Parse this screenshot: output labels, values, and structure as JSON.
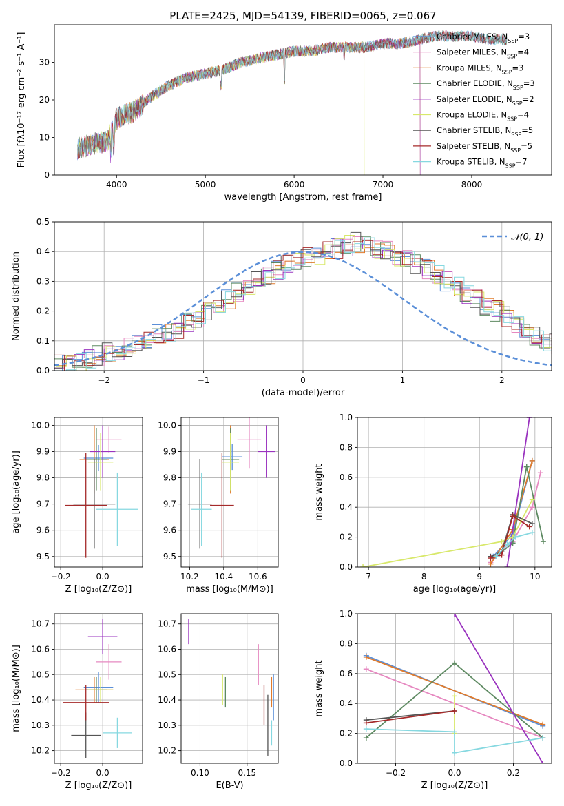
{
  "figure": {
    "title": "PLATE=2425, MJD=54139, FIBERID=0065, z=0.067"
  },
  "colors": {
    "Chabrier MILES": "#5b8fd8",
    "Salpeter MILES": "#e688c0",
    "Kroupa MILES": "#e07b2c",
    "Chabrier ELODIE": "#5e8a62",
    "Salpeter ELODIE": "#9a33bf",
    "Kroupa ELODIE": "#d8e86a",
    "Chabrier STELIB": "#555555",
    "Salpeter STELIB": "#a52a2a",
    "Kroupa STELIB": "#86d8e0"
  },
  "chart_data": [
    {
      "id": "spectrum",
      "type": "line",
      "title": "PLATE=2425, MJD=54139, FIBERID=0065, z=0.067",
      "xlabel": "wavelength [Angstrom, rest frame]",
      "ylabel": "Flux [fλ10⁻¹⁷ erg cm⁻² s⁻¹ A⁻¹]",
      "xlim": [
        3300,
        8900
      ],
      "ylim": [
        0,
        40
      ],
      "xticks": [
        4000,
        5000,
        6000,
        7000,
        8000
      ],
      "yticks": [
        0,
        10,
        20,
        30
      ],
      "legend": "right",
      "series": [
        {
          "name": "Chabrier MILES, N_SSP=3",
          "label_main": "Chabrier MILES, N",
          "label_sub": "SSP",
          "label_tail": "=3"
        },
        {
          "name": "Salpeter MILES, N_SSP=4",
          "label_main": "Salpeter MILES, N",
          "label_sub": "SSP",
          "label_tail": "=4"
        },
        {
          "name": "Kroupa MILES, N_SSP=3",
          "label_main": "Kroupa MILES, N",
          "label_sub": "SSP",
          "label_tail": "=3"
        },
        {
          "name": "Chabrier ELODIE, N_SSP=3",
          "label_main": "Chabrier ELODIE, N",
          "label_sub": "SSP",
          "label_tail": "=3"
        },
        {
          "name": "Salpeter ELODIE, N_SSP=2",
          "label_main": "Salpeter ELODIE, N",
          "label_sub": "SSP",
          "label_tail": "=2"
        },
        {
          "name": "Kroupa ELODIE, N_SSP=4",
          "label_main": "Kroupa ELODIE, N",
          "label_sub": "SSP",
          "label_tail": "=4"
        },
        {
          "name": "Chabrier STELIB, N_SSP=5",
          "label_main": "Chabrier STELIB, N",
          "label_sub": "SSP",
          "label_tail": "=5"
        },
        {
          "name": "Salpeter STELIB, N_SSP=5",
          "label_main": "Salpeter STELIB, N",
          "label_sub": "SSP",
          "label_tail": "=5"
        },
        {
          "name": "Kroupa STELIB, N_SSP=7",
          "label_main": "Kroupa STELIB, N",
          "label_sub": "SSP",
          "label_tail": "=7"
        }
      ],
      "continuum": {
        "x": [
          3560,
          3700,
          3900,
          3950,
          4000,
          4200,
          4400,
          4600,
          4800,
          5000,
          5200,
          5400,
          5600,
          5800,
          6000,
          6200,
          6400,
          6600,
          6800,
          7000,
          7200,
          7400,
          7600,
          7800,
          8000,
          8200,
          8400
        ],
        "y": [
          7,
          8,
          9,
          12,
          15,
          17,
          21,
          24,
          26,
          27,
          28,
          30,
          31,
          32,
          33,
          33,
          34,
          34,
          34,
          35,
          35,
          36,
          37,
          37,
          37,
          36,
          36
        ]
      },
      "spectrum_end": {
        "Salpeter ELODIE": 7420,
        "Kroupa ELODIE": 6790,
        "Kroupa MILES": 7420
      }
    },
    {
      "id": "residuals",
      "type": "histogram",
      "xlabel": "(data-model)/error",
      "ylabel": "Normed distribution",
      "xlim": [
        -2.5,
        2.5
      ],
      "ylim": [
        0,
        0.5
      ],
      "xticks": [
        -2,
        -1,
        0,
        1,
        2
      ],
      "yticks": [
        0.0,
        0.1,
        0.2,
        0.3,
        0.4,
        0.5
      ],
      "legend": "top-right",
      "legend_label": "𝒩(0, 1)",
      "bin_width": 0.1,
      "base_heights": [
        0.02,
        0.02,
        0.03,
        0.04,
        0.05,
        0.06,
        0.07,
        0.08,
        0.09,
        0.1,
        0.12,
        0.13,
        0.14,
        0.16,
        0.18,
        0.2,
        0.22,
        0.24,
        0.26,
        0.28,
        0.3,
        0.32,
        0.34,
        0.36,
        0.37,
        0.38,
        0.39,
        0.4,
        0.41,
        0.42,
        0.43,
        0.42,
        0.41,
        0.4,
        0.38,
        0.37,
        0.36,
        0.34,
        0.32,
        0.3,
        0.28,
        0.26,
        0.24,
        0.22,
        0.2,
        0.18,
        0.16,
        0.14,
        0.12,
        0.1,
        0.09,
        0.08,
        0.07,
        0.06,
        0.05,
        0.04,
        0.03,
        0.03,
        0.02,
        0.02
      ]
    },
    {
      "id": "age_vs_Z",
      "type": "scatter",
      "xlabel": "Z [log₁₀(Z/Z⊙)]",
      "ylabel": "age  [log₁₀(age/yr)]",
      "xlim": [
        -0.23,
        0.19
      ],
      "ylim": [
        9.46,
        10.03
      ],
      "xticks": [
        -0.2,
        0.0
      ],
      "yticks": [
        9.5,
        9.6,
        9.7,
        9.8,
        9.9,
        10.0
      ],
      "points": [
        {
          "model": "Chabrier MILES",
          "x": -0.02,
          "y": 9.875,
          "xerr": 0.07,
          "yerr": 0.05
        },
        {
          "model": "Salpeter MILES",
          "x": 0.03,
          "y": 9.945,
          "xerr": 0.06,
          "yerr": 0.05
        },
        {
          "model": "Kroupa MILES",
          "x": -0.04,
          "y": 9.87,
          "xerr": 0.07,
          "yerr": 0.13
        },
        {
          "model": "Chabrier ELODIE",
          "x": -0.03,
          "y": 9.87,
          "xerr": 0.05,
          "yerr": 0.12
        },
        {
          "model": "Salpeter ELODIE",
          "x": 0.0,
          "y": 9.9,
          "xerr": 0.06,
          "yerr": 0.1
        },
        {
          "model": "Kroupa ELODIE",
          "x": -0.01,
          "y": 9.86,
          "xerr": 0.06,
          "yerr": 0.11
        },
        {
          "model": "Chabrier STELIB",
          "x": -0.04,
          "y": 9.7,
          "xerr": 0.1,
          "yerr": 0.17
        },
        {
          "model": "Salpeter STELIB",
          "x": -0.08,
          "y": 9.695,
          "xerr": 0.1,
          "yerr": 0.2
        },
        {
          "model": "Kroupa STELIB",
          "x": 0.07,
          "y": 9.68,
          "xerr": 0.1,
          "yerr": 0.14
        }
      ]
    },
    {
      "id": "age_vs_mass",
      "type": "scatter",
      "xlabel": "mass [log₁₀(M/M⊙)]",
      "ylabel": "",
      "xlim": [
        10.15,
        10.72
      ],
      "ylim": [
        9.46,
        10.03
      ],
      "xticks": [
        10.2,
        10.4,
        10.6
      ],
      "yticks": [
        9.5,
        9.6,
        9.7,
        9.8,
        9.9,
        10.0
      ],
      "points": [
        {
          "model": "Chabrier MILES",
          "x": 10.45,
          "y": 9.88,
          "xerr": 0.06,
          "yerr": 0.05
        },
        {
          "model": "Salpeter MILES",
          "x": 10.55,
          "y": 9.945,
          "xerr": 0.07,
          "yerr": 0.11
        },
        {
          "model": "Kroupa MILES",
          "x": 10.44,
          "y": 9.87,
          "xerr": 0.05,
          "yerr": 0.13
        },
        {
          "model": "Chabrier ELODIE",
          "x": 10.44,
          "y": 9.87,
          "xerr": 0.05,
          "yerr": 0.12
        },
        {
          "model": "Salpeter ELODIE",
          "x": 10.65,
          "y": 9.9,
          "xerr": 0.05,
          "yerr": 0.1
        },
        {
          "model": "Kroupa ELODIE",
          "x": 10.44,
          "y": 9.86,
          "xerr": 0.05,
          "yerr": 0.11
        },
        {
          "model": "Chabrier STELIB",
          "x": 10.26,
          "y": 9.7,
          "xerr": 0.07,
          "yerr": 0.17
        },
        {
          "model": "Salpeter STELIB",
          "x": 10.39,
          "y": 9.695,
          "xerr": 0.07,
          "yerr": 0.2
        },
        {
          "model": "Kroupa STELIB",
          "x": 10.27,
          "y": 9.68,
          "xerr": 0.06,
          "yerr": 0.14
        }
      ]
    },
    {
      "id": "weight_vs_age",
      "type": "line",
      "xlabel": "age  [log₁₀(age/yr)]",
      "ylabel": "mass weight",
      "xlim": [
        6.8,
        10.3
      ],
      "ylim": [
        0,
        1
      ],
      "xticks": [
        7,
        8,
        9,
        10
      ],
      "yticks": [
        0.0,
        0.2,
        0.4,
        0.6,
        0.8,
        1.0
      ],
      "series": [
        {
          "name": "Chabrier MILES",
          "x": [
            9.25,
            9.6,
            9.95
          ],
          "y": [
            0.07,
            0.22,
            0.71
          ]
        },
        {
          "name": "Salpeter MILES",
          "x": [
            9.2,
            9.6,
            9.95,
            10.1
          ],
          "y": [
            0.03,
            0.17,
            0.4,
            0.63
          ]
        },
        {
          "name": "Kroupa MILES",
          "x": [
            9.2,
            9.6,
            9.95
          ],
          "y": [
            0.02,
            0.25,
            0.71
          ]
        },
        {
          "name": "Chabrier ELODIE",
          "x": [
            9.3,
            9.6,
            9.85,
            10.15
          ],
          "y": [
            0.07,
            0.16,
            0.67,
            0.17
          ]
        },
        {
          "name": "Salpeter ELODIE",
          "x": [
            9.5,
            9.9
          ],
          "y": [
            0.0,
            1.0
          ]
        },
        {
          "name": "Kroupa ELODIE",
          "x": [
            6.9,
            9.4,
            9.6,
            9.95
          ],
          "y": [
            0.0,
            0.17,
            0.2,
            0.45
          ]
        },
        {
          "name": "Chabrier STELIB",
          "x": [
            9.2,
            9.4,
            9.6,
            9.95
          ],
          "y": [
            0.07,
            0.1,
            0.35,
            0.29
          ]
        },
        {
          "name": "Salpeter STELIB",
          "x": [
            9.2,
            9.4,
            9.6,
            9.9
          ],
          "y": [
            0.06,
            0.08,
            0.34,
            0.27
          ]
        },
        {
          "name": "Kroupa STELIB",
          "x": [
            9.3,
            9.5,
            9.65,
            9.95
          ],
          "y": [
            0.07,
            0.15,
            0.2,
            0.23
          ]
        }
      ]
    },
    {
      "id": "mass_vs_Z",
      "type": "scatter",
      "xlabel": "Z [log₁₀(Z/Z⊙)]",
      "ylabel": "mass [log₁₀(M/M⊙)]",
      "xlim": [
        -0.23,
        0.19
      ],
      "ylim": [
        10.15,
        10.74
      ],
      "xticks": [
        -0.2,
        0.0
      ],
      "yticks": [
        10.2,
        10.3,
        10.4,
        10.5,
        10.6,
        10.7
      ],
      "points": [
        {
          "model": "Chabrier MILES",
          "x": -0.02,
          "y": 10.45,
          "xerr": 0.07,
          "yerr": 0.06
        },
        {
          "model": "Salpeter MILES",
          "x": 0.03,
          "y": 10.55,
          "xerr": 0.06,
          "yerr": 0.07
        },
        {
          "model": "Kroupa MILES",
          "x": -0.04,
          "y": 10.44,
          "xerr": 0.09,
          "yerr": 0.05
        },
        {
          "model": "Chabrier ELODIE",
          "x": -0.03,
          "y": 10.44,
          "xerr": 0.05,
          "yerr": 0.05
        },
        {
          "model": "Salpeter ELODIE",
          "x": 0.0,
          "y": 10.65,
          "xerr": 0.07,
          "yerr": 0.07
        },
        {
          "model": "Kroupa ELODIE",
          "x": -0.01,
          "y": 10.44,
          "xerr": 0.06,
          "yerr": 0.05
        },
        {
          "model": "Chabrier STELIB",
          "x": -0.08,
          "y": 10.26,
          "xerr": 0.07,
          "yerr": 0.09
        },
        {
          "model": "Salpeter STELIB",
          "x": -0.08,
          "y": 10.39,
          "xerr": 0.11,
          "yerr": 0.07
        },
        {
          "model": "Kroupa STELIB",
          "x": 0.07,
          "y": 10.27,
          "xerr": 0.07,
          "yerr": 0.06
        }
      ]
    },
    {
      "id": "mass_vs_ebv",
      "type": "scatter",
      "xlabel": "E(B-V)",
      "ylabel": "",
      "xlim": [
        0.08,
        0.183
      ],
      "ylim": [
        10.15,
        10.74
      ],
      "xticks": [
        0.1,
        0.15
      ],
      "yticks": [
        10.2,
        10.3,
        10.4,
        10.5,
        10.6,
        10.7
      ],
      "points": [
        {
          "model": "Chabrier MILES",
          "x": 0.178,
          "y": 10.41,
          "xerr": 0,
          "yerr": 0.09
        },
        {
          "model": "Salpeter MILES",
          "x": 0.162,
          "y": 10.54,
          "xerr": 0,
          "yerr": 0.08
        },
        {
          "model": "Kroupa MILES",
          "x": 0.176,
          "y": 10.43,
          "xerr": 0,
          "yerr": 0.06
        },
        {
          "model": "Chabrier ELODIE",
          "x": 0.127,
          "y": 10.43,
          "xerr": 0,
          "yerr": 0.06
        },
        {
          "model": "Salpeter ELODIE",
          "x": 0.088,
          "y": 10.67,
          "xerr": 0,
          "yerr": 0.05
        },
        {
          "model": "Kroupa ELODIE",
          "x": 0.124,
          "y": 10.44,
          "xerr": 0,
          "yerr": 0.06
        },
        {
          "model": "Chabrier STELIB",
          "x": 0.172,
          "y": 10.3,
          "xerr": 0,
          "yerr": 0.12
        },
        {
          "model": "Salpeter STELIB",
          "x": 0.168,
          "y": 10.38,
          "xerr": 0,
          "yerr": 0.08
        },
        {
          "model": "Kroupa STELIB",
          "x": 0.176,
          "y": 10.27,
          "xerr": 0,
          "yerr": 0.05
        }
      ]
    },
    {
      "id": "weight_vs_Z",
      "type": "line",
      "xlabel": "Z [log₁₀(Z/Z⊙)]",
      "ylabel": "mass weight",
      "xlim": [
        -0.33,
        0.33
      ],
      "ylim": [
        0,
        1
      ],
      "xticks": [
        -0.2,
        0.0,
        0.2
      ],
      "yticks": [
        0.0,
        0.2,
        0.4,
        0.6,
        0.8,
        1.0
      ],
      "series": [
        {
          "name": "Chabrier MILES",
          "x": [
            -0.3,
            0.3
          ],
          "y": [
            0.72,
            0.25
          ]
        },
        {
          "name": "Salpeter MILES",
          "x": [
            -0.3,
            0.3
          ],
          "y": [
            0.63,
            0.17
          ]
        },
        {
          "name": "Kroupa MILES",
          "x": [
            -0.3,
            0.3
          ],
          "y": [
            0.71,
            0.26
          ]
        },
        {
          "name": "Chabrier ELODIE",
          "x": [
            -0.3,
            0.0,
            0.3
          ],
          "y": [
            0.17,
            0.67,
            0.17
          ]
        },
        {
          "name": "Salpeter ELODIE",
          "x": [
            0.0,
            0.3
          ],
          "y": [
            1.0,
            0.0
          ]
        },
        {
          "name": "Kroupa ELODIE",
          "x": [
            0.0,
            0.0
          ],
          "y": [
            0.2,
            0.45
          ]
        },
        {
          "name": "Chabrier STELIB",
          "x": [
            -0.3,
            0.0
          ],
          "y": [
            0.29,
            0.35
          ]
        },
        {
          "name": "Salpeter STELIB",
          "x": [
            -0.3,
            0.0
          ],
          "y": [
            0.27,
            0.35
          ]
        },
        {
          "name": "Kroupa STELIB",
          "x": [
            -0.3,
            0.0,
            0.0,
            0.3
          ],
          "y": [
            0.23,
            0.21,
            0.07,
            0.17
          ]
        }
      ]
    }
  ]
}
